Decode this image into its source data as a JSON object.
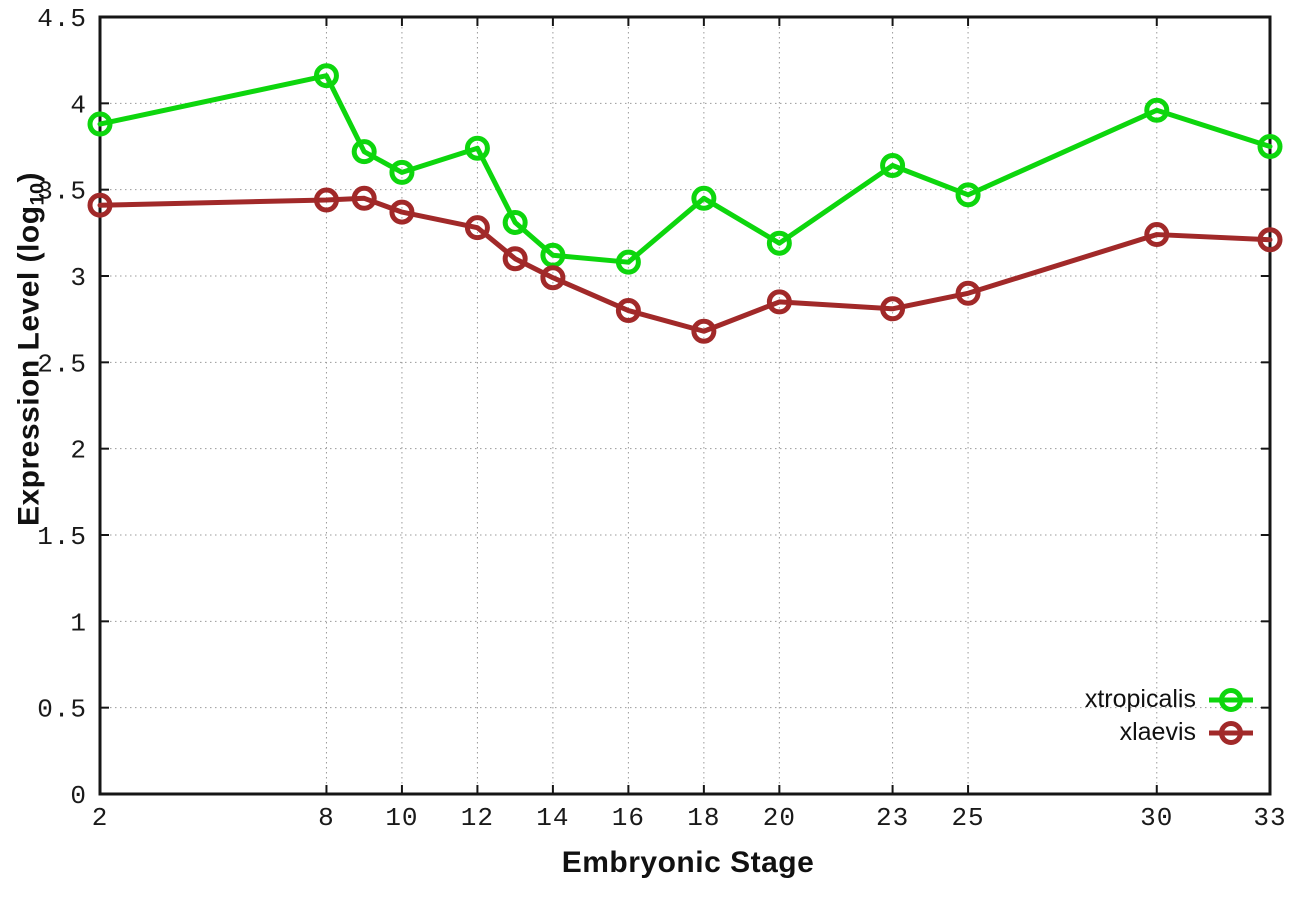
{
  "chart_data": {
    "type": "line",
    "title": "",
    "xlabel": "Embryonic Stage",
    "ylabel": "Expression Level (log10)",
    "ylabel_rich": {
      "prefix": "Expression Level (log",
      "sub": "10",
      "suffix": ")"
    },
    "xlim": [
      2,
      33
    ],
    "ylim": [
      0,
      4.5
    ],
    "x_ticks": [
      2,
      8,
      10,
      12,
      14,
      16,
      18,
      20,
      23,
      25,
      30,
      33
    ],
    "y_ticks": [
      0,
      0.5,
      1,
      1.5,
      2,
      2.5,
      3,
      3.5,
      4,
      4.5
    ],
    "grid": "dotted",
    "legend_position": "inside-bottom-right",
    "marker": "open-circle",
    "x": [
      2,
      8,
      9,
      10,
      12,
      13,
      14,
      16,
      18,
      20,
      23,
      25,
      30,
      33
    ],
    "series": [
      {
        "name": "xtropicalis",
        "color": "#0dd60d",
        "values": [
          3.88,
          4.16,
          3.72,
          3.6,
          3.74,
          3.31,
          3.12,
          3.08,
          3.45,
          3.19,
          3.64,
          3.47,
          3.96,
          3.75
        ]
      },
      {
        "name": "xlaevis",
        "color": "#a12929",
        "values": [
          3.41,
          3.44,
          3.45,
          3.37,
          3.28,
          3.1,
          2.99,
          2.8,
          2.68,
          2.85,
          2.81,
          2.9,
          3.24,
          3.21
        ]
      }
    ],
    "axis_color": "#161616",
    "grid_color": "#9a9a9a",
    "tick_label_color": "#1a1a1a"
  }
}
